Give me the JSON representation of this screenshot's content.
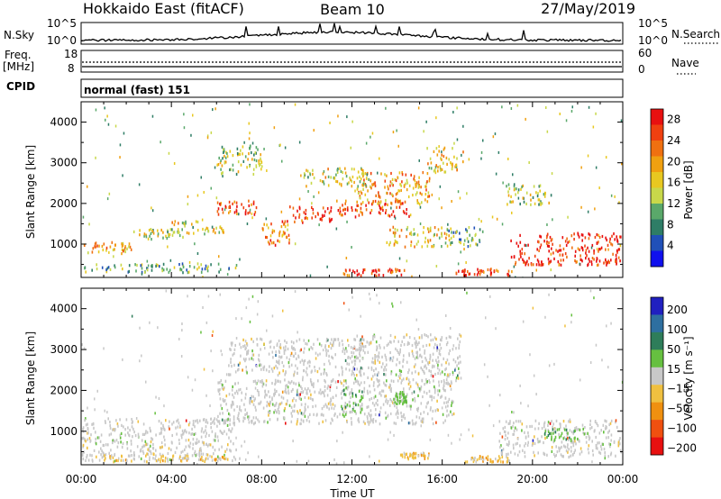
{
  "header": {
    "left_title": "Hokkaido East (fitACF)",
    "center_title": "Beam 10",
    "date": "27/May/2019"
  },
  "top_panels": {
    "nsky": {
      "label": "N.Sky",
      "left_ticks": [
        "10^5",
        "10^0"
      ],
      "right_ticks": [
        "10^5",
        "10^0"
      ],
      "right_label": "N.Search"
    },
    "freq": {
      "label_line1": "Freq.",
      "label_line2": "[MHz]",
      "left_ticks": [
        "18",
        "8"
      ],
      "right_ticks": [
        "60",
        "0"
      ],
      "right_label": "Nave"
    },
    "cpid": {
      "label": "CPID",
      "value": "normal (fast) 151"
    }
  },
  "chart_data": [
    {
      "type": "heatmap",
      "title": "",
      "xlabel": "",
      "ylabel": "Slant Range [km]",
      "xlim": [
        0,
        24
      ],
      "ylim": [
        180,
        4500
      ],
      "x_ticks": [
        "00:00",
        "04:00",
        "08:00",
        "12:00",
        "16:00",
        "20:00",
        "00:00"
      ],
      "x_tick_hours": [
        0,
        4,
        8,
        12,
        16,
        20,
        24
      ],
      "y_ticks": [
        1000,
        2000,
        3000,
        4000
      ],
      "colorbar": {
        "label": "Power [dB]",
        "ticks": [
          "4",
          "8",
          "12",
          "16",
          "20",
          "24",
          "28"
        ],
        "colors": [
          "#1010ee",
          "#2050b8",
          "#2e7d66",
          "#5aa86a",
          "#c8d84a",
          "#e8c820",
          "#f0a010",
          "#f07010",
          "#f04010",
          "#e81010"
        ]
      },
      "series": [
        {
          "x": [
            0.1,
            2.2
          ],
          "y": [
            800,
            1100
          ],
          "level": 20
        },
        {
          "x": [
            2.3,
            4.5
          ],
          "y": [
            1150,
            1400
          ],
          "level": 14
        },
        {
          "x": [
            4.0,
            6.3
          ],
          "y": [
            1250,
            1600
          ],
          "level": 16
        },
        {
          "x": [
            6.0,
            7.8
          ],
          "y": [
            1750,
            2100
          ],
          "level": 26
        },
        {
          "x": [
            8.0,
            9.2
          ],
          "y": [
            1000,
            1600
          ],
          "level": 22
        },
        {
          "x": [
            9.2,
            11.2
          ],
          "y": [
            1550,
            1950
          ],
          "level": 26
        },
        {
          "x": [
            11.3,
            14.6
          ],
          "y": [
            1700,
            2100
          ],
          "level": 26
        },
        {
          "x": [
            12.2,
            15.5
          ],
          "y": [
            2000,
            2800
          ],
          "level": 20
        },
        {
          "x": [
            15.3,
            16.9
          ],
          "y": [
            2800,
            3400
          ],
          "level": 18
        },
        {
          "x": [
            13.5,
            16.3
          ],
          "y": [
            950,
            1450
          ],
          "level": 18
        },
        {
          "x": [
            9.8,
            12.8
          ],
          "y": [
            2450,
            2900
          ],
          "level": 16
        },
        {
          "x": [
            16.2,
            17.8
          ],
          "y": [
            950,
            1450
          ],
          "level": 12
        },
        {
          "x": [
            18.8,
            20.8
          ],
          "y": [
            2000,
            2500
          ],
          "level": 14
        },
        {
          "x": [
            19.0,
            23.9
          ],
          "y": [
            500,
            1300
          ],
          "level": 27
        },
        {
          "x": [
            0.0,
            7.0
          ],
          "y": [
            330,
            550
          ],
          "level": 12
        },
        {
          "x": [
            11.6,
            14.3
          ],
          "y": [
            250,
            420
          ],
          "level": 26
        },
        {
          "x": [
            16.5,
            19.2
          ],
          "y": [
            260,
            420
          ],
          "level": 26
        },
        {
          "x": [
            6.0,
            8.0
          ],
          "y": [
            2750,
            3450
          ],
          "level": 14
        }
      ]
    },
    {
      "type": "heatmap",
      "title": "",
      "xlabel": "Time UT",
      "ylabel": "Slant Range [km]",
      "xlim": [
        0,
        24
      ],
      "ylim": [
        180,
        4500
      ],
      "x_ticks": [
        "00:00",
        "04:00",
        "08:00",
        "12:00",
        "16:00",
        "20:00",
        "00:00"
      ],
      "x_tick_hours": [
        0,
        4,
        8,
        12,
        16,
        20,
        24
      ],
      "y_ticks": [
        1000,
        2000,
        3000,
        4000
      ],
      "colorbar": {
        "label": "Velocity [m s⁻¹]",
        "ticks": [
          "200",
          "100",
          "50",
          "15",
          "−15",
          "−50",
          "−100",
          "−200"
        ],
        "colors": [
          "#2020c0",
          "#2e6fa0",
          "#2e7d5a",
          "#66c040",
          "#c8c8c8",
          "#f0c040",
          "#f09010",
          "#f05010",
          "#e81010"
        ]
      },
      "series": [
        {
          "x": [
            0.0,
            7.0
          ],
          "y": [
            300,
            1350
          ],
          "level": 0
        },
        {
          "x": [
            6.0,
            16.5
          ],
          "y": [
            1200,
            2300
          ],
          "level": 0
        },
        {
          "x": [
            12.0,
            16.8
          ],
          "y": [
            2200,
            3400
          ],
          "level": 0
        },
        {
          "x": [
            6.5,
            12.5
          ],
          "y": [
            2400,
            3300
          ],
          "level": 0
        },
        {
          "x": [
            18.5,
            23.9
          ],
          "y": [
            400,
            1300
          ],
          "level": 0
        },
        {
          "x": [
            11.5,
            12.6
          ],
          "y": [
            1400,
            2100
          ],
          "level": 30
        },
        {
          "x": [
            13.8,
            14.4
          ],
          "y": [
            1700,
            2000
          ],
          "level": 30
        },
        {
          "x": [
            14.0,
            15.4
          ],
          "y": [
            350,
            500
          ],
          "level": -40
        },
        {
          "x": [
            20.5,
            22.5
          ],
          "y": [
            800,
            1100
          ],
          "level": 30
        },
        {
          "x": [
            1.0,
            6.5
          ],
          "y": [
            280,
            480
          ],
          "level": -40
        },
        {
          "x": [
            17.0,
            19.0
          ],
          "y": [
            280,
            420
          ],
          "level": -40
        }
      ]
    }
  ]
}
